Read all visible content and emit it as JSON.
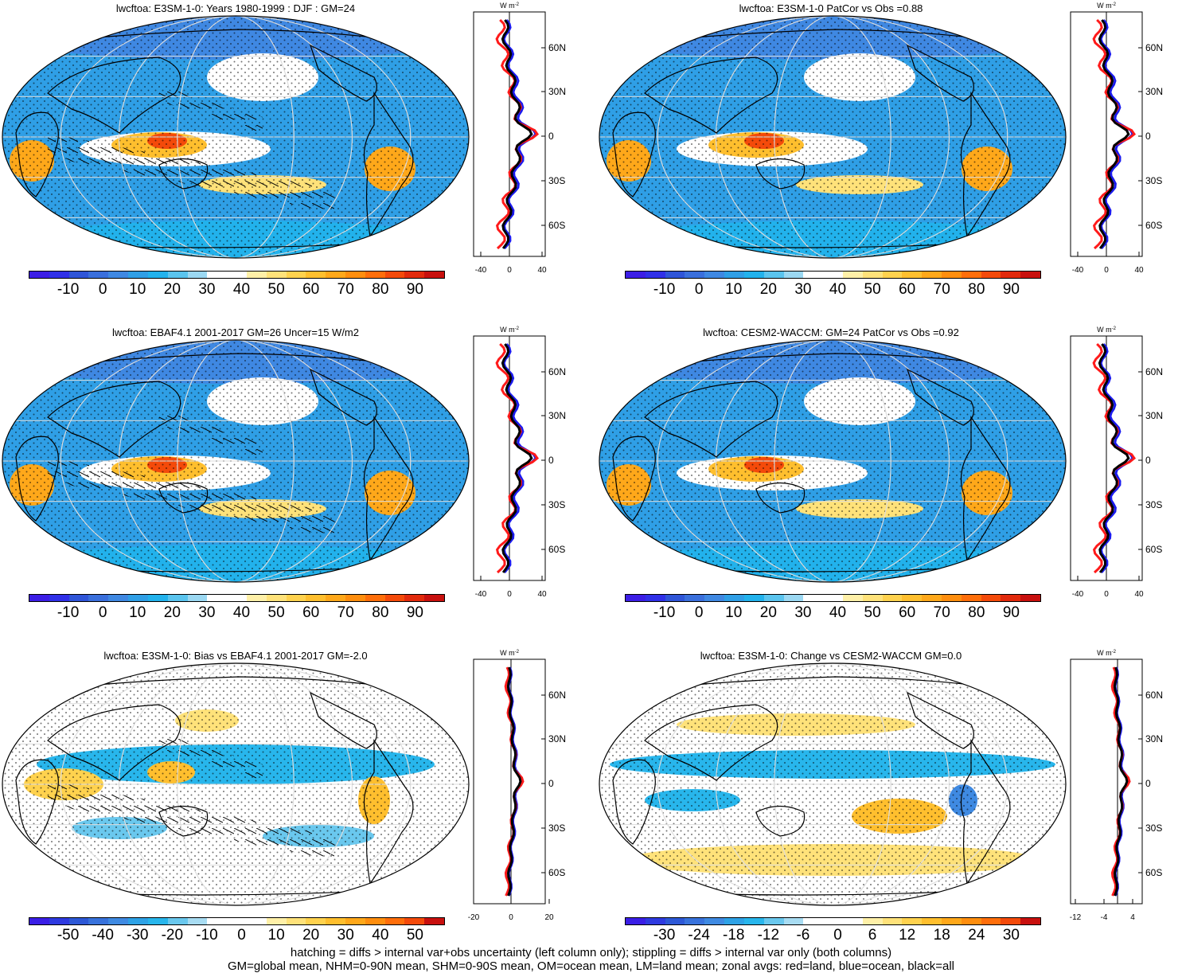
{
  "panels": [
    {
      "title": "lwcftoa: E3SM-1-0: Years 1980-1999 : DJF : GM=24",
      "map_style": "full",
      "cbar_scheme": "full",
      "cbar_labels": [
        "-10",
        "0",
        "10",
        "20",
        "30",
        "40",
        "50",
        "60",
        "70",
        "80",
        "90"
      ],
      "zonal_unit": "W m",
      "zonal_unit_exp": "-2",
      "zonal_xticks": [
        "-40",
        "0",
        "40"
      ],
      "lat_labels": [
        "60N",
        "30N",
        "0",
        "30S",
        "60S"
      ]
    },
    {
      "title": "lwcftoa: E3SM-1-0 PatCor vs Obs =0.88",
      "map_style": "full",
      "cbar_scheme": "full",
      "cbar_labels": [
        "-10",
        "0",
        "10",
        "20",
        "30",
        "40",
        "50",
        "60",
        "70",
        "80",
        "90"
      ],
      "zonal_unit": "W m",
      "zonal_unit_exp": "-2",
      "zonal_xticks": [
        "-40",
        "0",
        "40"
      ],
      "lat_labels": [
        "60N",
        "30N",
        "0",
        "30S",
        "60S"
      ]
    },
    {
      "title": "lwcftoa: EBAF4.1 2001-2017 GM=26 Uncer=15 W/m2",
      "map_style": "full",
      "cbar_scheme": "full",
      "cbar_labels": [
        "-10",
        "0",
        "10",
        "20",
        "30",
        "40",
        "50",
        "60",
        "70",
        "80",
        "90"
      ],
      "zonal_unit": "W m",
      "zonal_unit_exp": "-2",
      "zonal_xticks": [
        "-40",
        "0",
        "40"
      ],
      "lat_labels": [
        "60N",
        "30N",
        "0",
        "30S",
        "60S"
      ]
    },
    {
      "title": "lwcftoa: CESM2-WACCM: GM=24 PatCor vs Obs =0.92",
      "map_style": "full",
      "cbar_scheme": "full",
      "cbar_labels": [
        "-10",
        "0",
        "10",
        "20",
        "30",
        "40",
        "50",
        "60",
        "70",
        "80",
        "90"
      ],
      "zonal_unit": "W m",
      "zonal_unit_exp": "-2",
      "zonal_xticks": [
        "-40",
        "0",
        "40"
      ],
      "lat_labels": [
        "60N",
        "30N",
        "0",
        "30S",
        "60S"
      ]
    },
    {
      "title": "lwcftoa: E3SM-1-0: Bias vs EBAF4.1 2001-2017 GM=-2.0",
      "map_style": "bias",
      "cbar_scheme": "diverging",
      "cbar_labels": [
        "-50",
        "-40",
        "-30",
        "-20",
        "-10",
        "0",
        "10",
        "20",
        "30",
        "40",
        "50"
      ],
      "zonal_unit": "W m",
      "zonal_unit_exp": "-2",
      "zonal_xticks": [
        "-20",
        "0",
        "20"
      ],
      "lat_labels": [
        "60N",
        "30N",
        "0",
        "30S",
        "60S"
      ]
    },
    {
      "title": "lwcftoa: E3SM-1-0: Change vs CESM2-WACCM GM=0.0",
      "map_style": "change",
      "cbar_scheme": "diverging",
      "cbar_labels": [
        "-30",
        "-24",
        "-18",
        "-12",
        "-6",
        "0",
        "6",
        "12",
        "18",
        "24",
        "30"
      ],
      "zonal_unit": "W m",
      "zonal_unit_exp": "-2",
      "zonal_xticks": [
        "-12",
        "-4",
        "4"
      ],
      "lat_labels": [
        "60N",
        "30N",
        "0",
        "30S",
        "60S"
      ]
    }
  ],
  "colors": {
    "full": [
      "#3c1ee6",
      "#3030e8",
      "#2f55d8",
      "#3a6fdc",
      "#3f88e2",
      "#2f9fe6",
      "#22b2ec",
      "#5ac4ee",
      "#9bd8f2",
      "#ffffff",
      "#ffffff",
      "#fff0a8",
      "#ffe27a",
      "#ffd24e",
      "#ffbf2e",
      "#ffa81a",
      "#ff8e0e",
      "#ff6e0a",
      "#f44a0a",
      "#e22a0c",
      "#c8100e"
    ],
    "diverging": [
      "#3a1ee6",
      "#2e3ae0",
      "#2d58d6",
      "#3872dc",
      "#3f8ae2",
      "#2ea2e6",
      "#28b6ec",
      "#6ac8ee",
      "#a8dcf2",
      "#ffffff",
      "#ffffff",
      "#ffffff",
      "#fff0a8",
      "#ffe27a",
      "#ffd24e",
      "#ffbf2e",
      "#ffa81a",
      "#ff8e0e",
      "#ff6e0a",
      "#f44a0a",
      "#c8100e"
    ],
    "land_line": "#ff1a1a",
    "ocean_line": "#1a1aee",
    "all_line": "#000000"
  },
  "footer": {
    "line1": "hatching = diffs > internal var+obs uncertainty (left column only); stippling = diffs > internal var only (both columns)",
    "line2": "GM=global mean, NHM=0-90N mean, SHM=0-90S mean, OM=ocean mean, LM=land mean; zonal avgs: red=land, blue=ocean, black=all"
  }
}
